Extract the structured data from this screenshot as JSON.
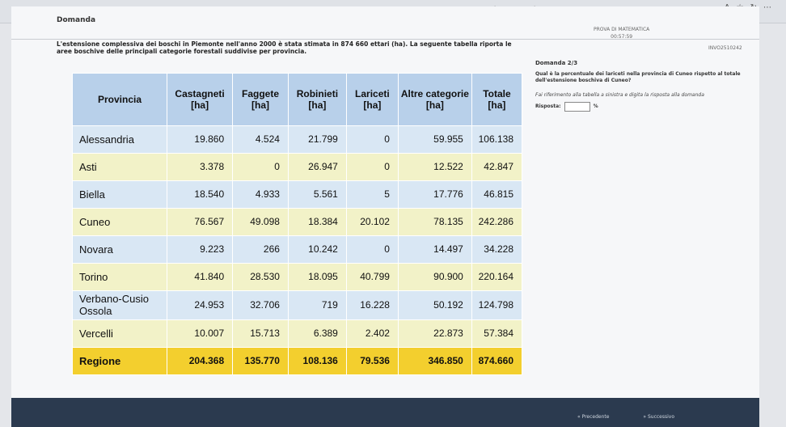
{
  "browser": {
    "url": "...0b.0rg%2F%23i682ae71621278202505191008546c5321"
  },
  "header": {
    "brand": "Domanda",
    "test_name": "PROVA DI MATEMATICA",
    "timer": "00:57:59",
    "user": "INVO2510242"
  },
  "content": {
    "intro": "L'estensione complessiva dei boschi in Piemonte nell'anno 2000 è stata stimata in 874 660 ettari (ha). La seguente tabella riporta le aree boschive delle principali categorie forestali suddivise per provincia.",
    "table": {
      "headers": [
        "Provincia",
        "Castagneti [ha]",
        "Faggete [ha]",
        "Robinieti [ha]",
        "Lariceti [ha]",
        "Altre categorie [ha]",
        "Totale [ha]"
      ],
      "rows": [
        [
          "Alessandria",
          "19.860",
          "4.524",
          "21.799",
          "0",
          "59.955",
          "106.138"
        ],
        [
          "Asti",
          "3.378",
          "0",
          "26.947",
          "0",
          "12.522",
          "42.847"
        ],
        [
          "Biella",
          "18.540",
          "4.933",
          "5.561",
          "5",
          "17.776",
          "46.815"
        ],
        [
          "Cuneo",
          "76.567",
          "49.098",
          "18.384",
          "20.102",
          "78.135",
          "242.286"
        ],
        [
          "Novara",
          "9.223",
          "266",
          "10.242",
          "0",
          "14.497",
          "34.228"
        ],
        [
          "Torino",
          "41.840",
          "28.530",
          "18.095",
          "40.799",
          "90.900",
          "220.164"
        ],
        [
          "Verbano-Cusio Ossola",
          "24.953",
          "32.706",
          "719",
          "16.228",
          "50.192",
          "124.798"
        ],
        [
          "Vercelli",
          "10.007",
          "15.713",
          "6.389",
          "2.402",
          "22.873",
          "57.384"
        ]
      ],
      "total": [
        "Regione",
        "204.368",
        "135.770",
        "108.136",
        "79.536",
        "346.850",
        "874.660"
      ]
    }
  },
  "question": {
    "number": "Domanda 2/3",
    "text": "Qual è la percentuale dei lariceti nella provincia di Cuneo rispetto al totale dell'estensione boschiva di Cuneo?",
    "hint": "Fai riferimento alla tabella a sinistra e digita la risposta alla domanda",
    "answer_label": "Risposta:",
    "answer_value": "",
    "unit": "%"
  },
  "footer": {
    "prev": "« Precedente",
    "next": "» Successivo"
  }
}
